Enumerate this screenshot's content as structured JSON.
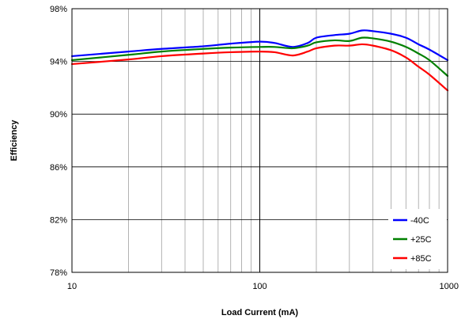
{
  "chart_data": {
    "type": "line",
    "title": "",
    "xlabel": "Load Current (mA)",
    "ylabel": "Efficiency",
    "x_scale": "log",
    "xlim": [
      10,
      1000
    ],
    "ylim": [
      78,
      98
    ],
    "x_ticks": [
      {
        "value": 10,
        "label": "10"
      },
      {
        "value": 100,
        "label": "100"
      },
      {
        "value": 1000,
        "label": "1000"
      }
    ],
    "y_ticks": [
      {
        "value": 78,
        "label": "78%"
      },
      {
        "value": 82,
        "label": "82%"
      },
      {
        "value": 86,
        "label": "86%"
      },
      {
        "value": 90,
        "label": "90%"
      },
      {
        "value": 94,
        "label": "94%"
      },
      {
        "value": 98,
        "label": "98%"
      }
    ],
    "grid": true,
    "legend_position": "bottom-right",
    "series": [
      {
        "name": "-40C",
        "color": "#0000ff",
        "x": [
          10,
          20,
          30,
          50,
          70,
          100,
          120,
          150,
          180,
          200,
          250,
          300,
          350,
          400,
          500,
          600,
          700,
          800,
          1000
        ],
        "y": [
          94.4,
          94.75,
          94.95,
          95.15,
          95.35,
          95.5,
          95.4,
          95.1,
          95.4,
          95.8,
          96.0,
          96.1,
          96.35,
          96.3,
          96.1,
          95.8,
          95.3,
          94.9,
          94.1
        ]
      },
      {
        "name": "+25C",
        "color": "#008000",
        "x": [
          10,
          20,
          30,
          50,
          70,
          100,
          120,
          150,
          180,
          200,
          250,
          300,
          350,
          400,
          500,
          600,
          700,
          800,
          1000
        ],
        "y": [
          94.1,
          94.5,
          94.75,
          94.95,
          95.05,
          95.1,
          95.1,
          95.0,
          95.2,
          95.45,
          95.6,
          95.55,
          95.8,
          95.75,
          95.5,
          95.1,
          94.6,
          94.1,
          92.9
        ]
      },
      {
        "name": "+85C",
        "color": "#ff0000",
        "x": [
          10,
          20,
          30,
          50,
          70,
          100,
          120,
          150,
          180,
          200,
          250,
          300,
          350,
          400,
          500,
          600,
          700,
          800,
          1000
        ],
        "y": [
          93.8,
          94.15,
          94.4,
          94.6,
          94.7,
          94.75,
          94.7,
          94.45,
          94.75,
          95.0,
          95.2,
          95.2,
          95.3,
          95.2,
          94.85,
          94.3,
          93.6,
          93.0,
          91.8
        ]
      }
    ]
  }
}
